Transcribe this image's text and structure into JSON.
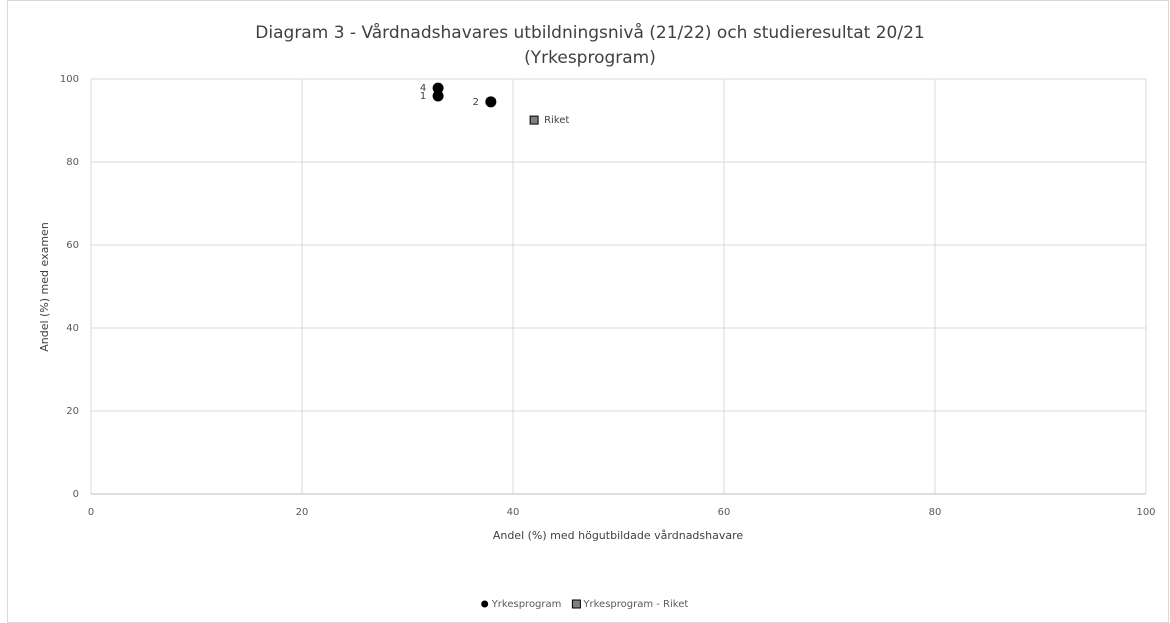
{
  "chart_data": {
    "type": "scatter",
    "title": [
      "Diagram 3 - Vårdnadshavares utbildningsnivå (21/22) och studieresultat 20/21",
      "(Yrkesprogram)"
    ],
    "x_label": "Andel (%) med högutbildade vårdnadshavare",
    "y_label": "Andel (%) med examen",
    "xlim": [
      0,
      100
    ],
    "xticks": [
      0,
      20,
      40,
      60,
      80,
      100
    ],
    "ylim": [
      0,
      100
    ],
    "yticks": [
      0,
      20,
      40,
      60,
      80,
      100
    ],
    "grid": true,
    "legend": "bottom",
    "series": [
      {
        "name": "Yrkesprogram",
        "color": "#000000",
        "marker": "circle",
        "x": [
          32.9,
          37.9,
          32.9
        ],
        "values": [
          95.9,
          94.5,
          97.8
        ],
        "point_labels": [
          "1",
          "2",
          "4"
        ]
      },
      {
        "name": "Yrkesprogram - Riket",
        "color": "#808080",
        "marker": "square",
        "x": [
          42.0
        ],
        "values": [
          90.1
        ],
        "point_labels": [
          "Riket"
        ]
      }
    ]
  }
}
